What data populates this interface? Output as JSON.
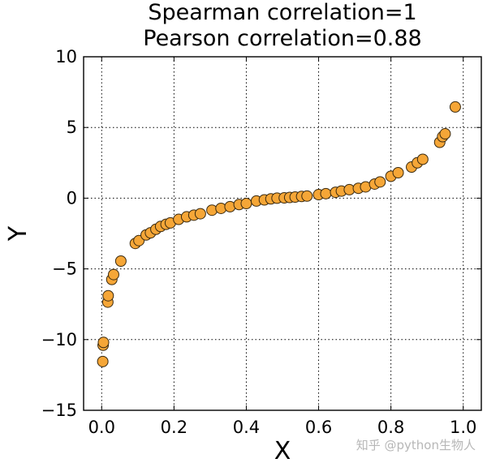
{
  "chart_data": {
    "type": "scatter",
    "title_lines": [
      "Spearman correlation=1",
      "Pearson correlation=0.88"
    ],
    "xlabel": "X",
    "ylabel": "Y",
    "xlim": [
      -0.05,
      1.05
    ],
    "ylim": [
      -15,
      10
    ],
    "xticks": [
      0.0,
      0.2,
      0.4,
      0.6,
      0.8,
      1.0
    ],
    "xtick_labels": [
      "0.0",
      "0.2",
      "0.4",
      "0.6",
      "0.8",
      "1.0"
    ],
    "yticks": [
      -15,
      -10,
      -5,
      0,
      5,
      10
    ],
    "ytick_labels": [
      "−15",
      "−10",
      "−5",
      "0",
      "5",
      "10"
    ],
    "grid": true,
    "marker_color": "#f5a637",
    "marker_edge_color": "#3a2a10",
    "points": [
      {
        "x": 0.003,
        "y": -11.55
      },
      {
        "x": 0.004,
        "y": -10.4
      },
      {
        "x": 0.005,
        "y": -10.2
      },
      {
        "x": 0.017,
        "y": -7.35
      },
      {
        "x": 0.018,
        "y": -6.9
      },
      {
        "x": 0.028,
        "y": -5.75
      },
      {
        "x": 0.033,
        "y": -5.4
      },
      {
        "x": 0.053,
        "y": -4.45
      },
      {
        "x": 0.093,
        "y": -3.2
      },
      {
        "x": 0.103,
        "y": -3.0
      },
      {
        "x": 0.123,
        "y": -2.6
      },
      {
        "x": 0.135,
        "y": -2.45
      },
      {
        "x": 0.15,
        "y": -2.2
      },
      {
        "x": 0.163,
        "y": -2.0
      },
      {
        "x": 0.178,
        "y": -1.85
      },
      {
        "x": 0.19,
        "y": -1.75
      },
      {
        "x": 0.213,
        "y": -1.5
      },
      {
        "x": 0.235,
        "y": -1.32
      },
      {
        "x": 0.255,
        "y": -1.2
      },
      {
        "x": 0.273,
        "y": -1.1
      },
      {
        "x": 0.305,
        "y": -0.85
      },
      {
        "x": 0.33,
        "y": -0.72
      },
      {
        "x": 0.355,
        "y": -0.6
      },
      {
        "x": 0.38,
        "y": -0.45
      },
      {
        "x": 0.4,
        "y": -0.38
      },
      {
        "x": 0.428,
        "y": -0.2
      },
      {
        "x": 0.45,
        "y": -0.12
      },
      {
        "x": 0.468,
        "y": -0.05
      },
      {
        "x": 0.485,
        "y": 0.0
      },
      {
        "x": 0.505,
        "y": 0.02
      },
      {
        "x": 0.52,
        "y": 0.05
      },
      {
        "x": 0.535,
        "y": 0.08
      },
      {
        "x": 0.553,
        "y": 0.12
      },
      {
        "x": 0.568,
        "y": 0.15
      },
      {
        "x": 0.6,
        "y": 0.25
      },
      {
        "x": 0.62,
        "y": 0.32
      },
      {
        "x": 0.647,
        "y": 0.42
      },
      {
        "x": 0.663,
        "y": 0.5
      },
      {
        "x": 0.685,
        "y": 0.6
      },
      {
        "x": 0.71,
        "y": 0.7
      },
      {
        "x": 0.73,
        "y": 0.8
      },
      {
        "x": 0.755,
        "y": 1.0
      },
      {
        "x": 0.77,
        "y": 1.15
      },
      {
        "x": 0.8,
        "y": 1.55
      },
      {
        "x": 0.82,
        "y": 1.8
      },
      {
        "x": 0.857,
        "y": 2.2
      },
      {
        "x": 0.873,
        "y": 2.5
      },
      {
        "x": 0.888,
        "y": 2.75
      },
      {
        "x": 0.935,
        "y": 3.95
      },
      {
        "x": 0.943,
        "y": 4.35
      },
      {
        "x": 0.95,
        "y": 4.55
      },
      {
        "x": 0.978,
        "y": 6.45
      }
    ]
  },
  "watermark": {
    "text": "知乎 @python生物人"
  }
}
